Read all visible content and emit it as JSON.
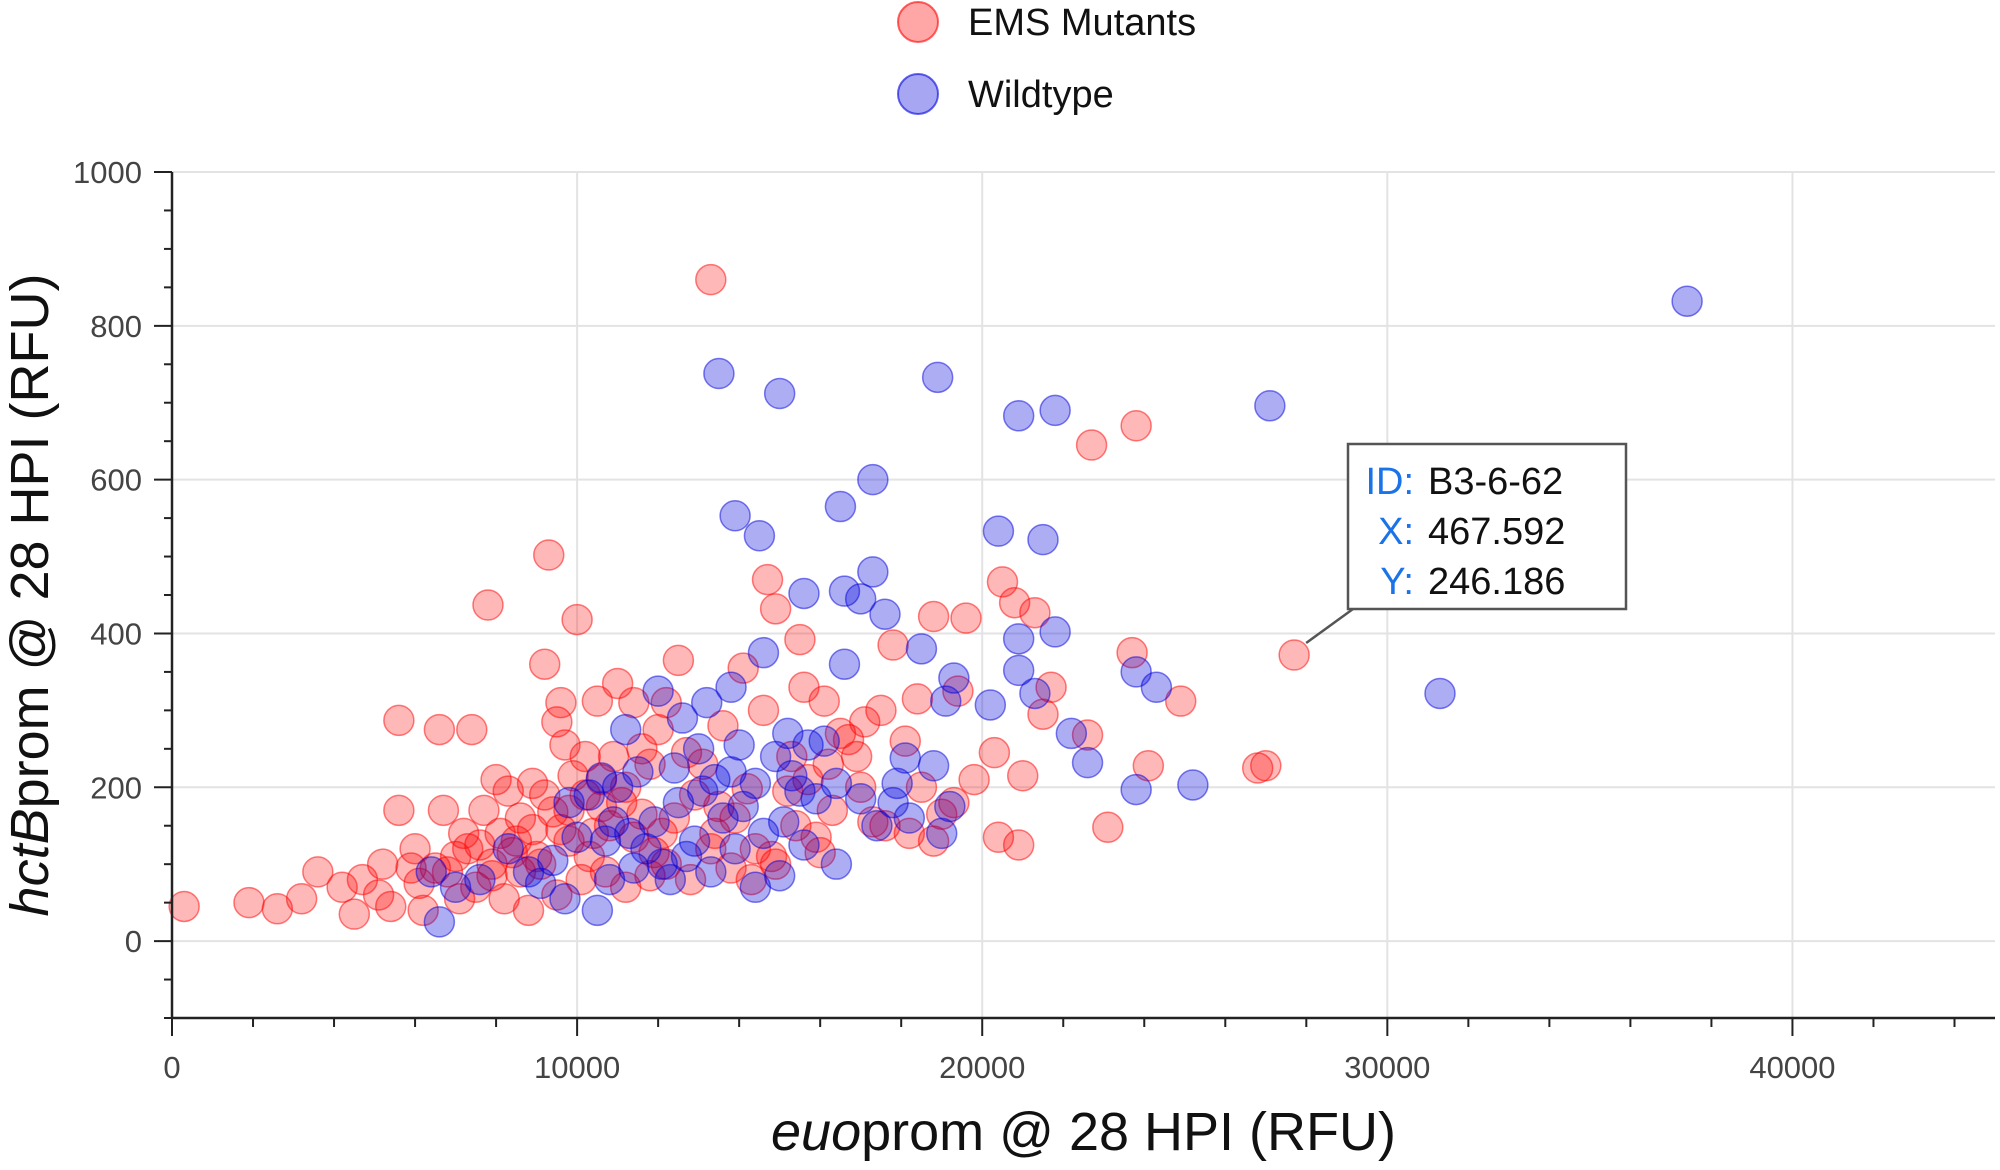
{
  "chart_data": {
    "type": "scatter",
    "title": "",
    "xlabel_italic": "euo",
    "xlabel_rest": "prom @ 28 HPI (RFU)",
    "ylabel_italic": "hctB",
    "ylabel_rest": "prom @ 28 HPI (RFU)",
    "xlim": [
      0,
      45000
    ],
    "ylim": [
      -100,
      1000
    ],
    "xticks": [
      0,
      10000,
      20000,
      30000,
      40000
    ],
    "xtick_labels": [
      "0",
      "10000",
      "20000",
      "30000",
      "40000"
    ],
    "yticks": [
      0,
      200,
      400,
      600,
      800,
      1000
    ],
    "ytick_labels": [
      "0",
      "200",
      "400",
      "600",
      "800",
      "1000"
    ],
    "grid": true,
    "legend_position": "top-center",
    "series": [
      {
        "name": "EMS Mutants",
        "color": "#ff0000",
        "points": [
          [
            13300,
            860
          ],
          [
            23800,
            670
          ],
          [
            22700,
            645
          ],
          [
            9300,
            502
          ],
          [
            7800,
            437
          ],
          [
            10000,
            418
          ],
          [
            14700,
            470
          ],
          [
            20500,
            467
          ],
          [
            14900,
            432
          ],
          [
            20800,
            440
          ],
          [
            21300,
            427
          ],
          [
            19600,
            420
          ],
          [
            18800,
            422
          ],
          [
            15500,
            392
          ],
          [
            14100,
            355
          ],
          [
            12500,
            365
          ],
          [
            9200,
            360
          ],
          [
            23700,
            375
          ],
          [
            5600,
            287
          ],
          [
            6600,
            275
          ],
          [
            7400,
            275
          ],
          [
            9600,
            310
          ],
          [
            10500,
            312
          ],
          [
            11000,
            335
          ],
          [
            9500,
            285
          ],
          [
            24100,
            228
          ],
          [
            24900,
            312
          ],
          [
            27700,
            372
          ],
          [
            27000,
            228
          ],
          [
            26800,
            225
          ],
          [
            23100,
            148
          ],
          [
            22600,
            268
          ],
          [
            21000,
            215
          ],
          [
            20400,
            135
          ],
          [
            20900,
            125
          ],
          [
            21700,
            330
          ],
          [
            21500,
            295
          ],
          [
            19400,
            325
          ],
          [
            18400,
            315
          ],
          [
            17500,
            300
          ],
          [
            16700,
            262
          ],
          [
            16100,
            312
          ],
          [
            15300,
            240
          ],
          [
            14200,
            198
          ],
          [
            13500,
            175
          ],
          [
            12700,
            245
          ],
          [
            11800,
            230
          ],
          [
            11200,
            200
          ],
          [
            10600,
            175
          ],
          [
            9900,
            215
          ],
          [
            9200,
            190
          ],
          [
            8600,
            160
          ],
          [
            8100,
            140
          ],
          [
            7600,
            125
          ],
          [
            7000,
            110
          ],
          [
            6500,
            95
          ],
          [
            6000,
            120
          ],
          [
            5600,
            170
          ],
          [
            5200,
            100
          ],
          [
            4700,
            80
          ],
          [
            4200,
            70
          ],
          [
            3600,
            90
          ],
          [
            3200,
            55
          ],
          [
            2600,
            42
          ],
          [
            1900,
            50
          ],
          [
            300,
            45
          ],
          [
            4500,
            35
          ],
          [
            5100,
            60
          ],
          [
            6200,
            40
          ],
          [
            7100,
            55
          ],
          [
            7900,
            85
          ],
          [
            8400,
            115
          ],
          [
            8900,
            145
          ],
          [
            9400,
            168
          ],
          [
            9800,
            130
          ],
          [
            10300,
            110
          ],
          [
            10800,
            150
          ],
          [
            11400,
            135
          ],
          [
            11900,
            115
          ],
          [
            12400,
            160
          ],
          [
            12900,
            190
          ],
          [
            13400,
            140
          ],
          [
            13900,
            160
          ],
          [
            14400,
            120
          ],
          [
            14900,
            100
          ],
          [
            15400,
            150
          ],
          [
            15900,
            135
          ],
          [
            16300,
            170
          ],
          [
            17000,
            200
          ],
          [
            17600,
            150
          ],
          [
            18200,
            140
          ],
          [
            18800,
            130
          ],
          [
            19300,
            180
          ],
          [
            19800,
            210
          ],
          [
            20300,
            245
          ],
          [
            17800,
            385
          ],
          [
            17100,
            285
          ],
          [
            16500,
            270
          ],
          [
            12000,
            275
          ],
          [
            11400,
            310
          ],
          [
            10200,
            240
          ],
          [
            9700,
            255
          ],
          [
            8900,
            205
          ],
          [
            8300,
            195
          ],
          [
            7700,
            170
          ],
          [
            7200,
            140
          ],
          [
            6700,
            170
          ],
          [
            6100,
            75
          ],
          [
            5400,
            45
          ],
          [
            5900,
            95
          ],
          [
            6800,
            90
          ],
          [
            7500,
            70
          ],
          [
            8200,
            55
          ],
          [
            8800,
            40
          ],
          [
            9500,
            60
          ],
          [
            10100,
            80
          ],
          [
            10700,
            90
          ],
          [
            11200,
            70
          ],
          [
            11800,
            85
          ],
          [
            12200,
            100
          ],
          [
            12800,
            80
          ],
          [
            13300,
            120
          ],
          [
            13800,
            95
          ],
          [
            14300,
            80
          ],
          [
            14800,
            110
          ],
          [
            15200,
            195
          ],
          [
            15700,
            210
          ],
          [
            16200,
            230
          ],
          [
            9100,
            100
          ],
          [
            8600,
            90
          ],
          [
            7900,
            100
          ],
          [
            7300,
            120
          ],
          [
            10400,
            140
          ],
          [
            11100,
            180
          ],
          [
            11600,
            165
          ],
          [
            12100,
            140
          ],
          [
            9800,
            170
          ],
          [
            10900,
            240
          ],
          [
            16900,
            240
          ],
          [
            18100,
            260
          ],
          [
            19000,
            165
          ],
          [
            18500,
            200
          ],
          [
            17300,
            155
          ],
          [
            16000,
            115
          ],
          [
            13100,
            230
          ],
          [
            14600,
            300
          ],
          [
            15600,
            330
          ],
          [
            12200,
            310
          ],
          [
            13600,
            280
          ],
          [
            11600,
            250
          ],
          [
            8000,
            210
          ],
          [
            8500,
            130
          ],
          [
            9000,
            110
          ],
          [
            9600,
            145
          ],
          [
            10200,
            190
          ],
          [
            10600,
            210
          ]
        ]
      },
      {
        "name": "Wildtype",
        "color": "#0000dd",
        "points": [
          [
            37400,
            832
          ],
          [
            13500,
            738
          ],
          [
            18900,
            733
          ],
          [
            15000,
            712
          ],
          [
            20900,
            683
          ],
          [
            21800,
            690
          ],
          [
            27100,
            696
          ],
          [
            17300,
            600
          ],
          [
            16500,
            565
          ],
          [
            13900,
            553
          ],
          [
            14500,
            527
          ],
          [
            20400,
            533
          ],
          [
            21500,
            522
          ],
          [
            17300,
            480
          ],
          [
            15600,
            452
          ],
          [
            16600,
            455
          ],
          [
            17000,
            445
          ],
          [
            17600,
            425
          ],
          [
            31300,
            322
          ],
          [
            20900,
            393
          ],
          [
            21800,
            402
          ],
          [
            14600,
            375
          ],
          [
            16600,
            360
          ],
          [
            18500,
            380
          ],
          [
            20900,
            352
          ],
          [
            23800,
            350
          ],
          [
            24300,
            330
          ],
          [
            21300,
            322
          ],
          [
            19300,
            342
          ],
          [
            20200,
            307
          ],
          [
            19100,
            312
          ],
          [
            13800,
            330
          ],
          [
            13200,
            310
          ],
          [
            12600,
            290
          ],
          [
            12000,
            325
          ],
          [
            11200,
            275
          ],
          [
            10600,
            212
          ],
          [
            11500,
            220
          ],
          [
            22200,
            270
          ],
          [
            22600,
            232
          ],
          [
            25200,
            203
          ],
          [
            23800,
            197
          ],
          [
            18100,
            238
          ],
          [
            18800,
            228
          ],
          [
            17900,
            205
          ],
          [
            19200,
            175
          ],
          [
            19000,
            140
          ],
          [
            18200,
            160
          ],
          [
            17000,
            185
          ],
          [
            16400,
            205
          ],
          [
            15700,
            255
          ],
          [
            15200,
            270
          ],
          [
            14900,
            240
          ],
          [
            14400,
            205
          ],
          [
            13800,
            220
          ],
          [
            13100,
            195
          ],
          [
            12500,
            180
          ],
          [
            11900,
            155
          ],
          [
            11300,
            140
          ],
          [
            10700,
            130
          ],
          [
            10000,
            135
          ],
          [
            9400,
            105
          ],
          [
            8800,
            90
          ],
          [
            8300,
            120
          ],
          [
            7600,
            80
          ],
          [
            7000,
            70
          ],
          [
            6600,
            25
          ],
          [
            10500,
            40
          ],
          [
            6400,
            90
          ],
          [
            9100,
            75
          ],
          [
            9700,
            55
          ],
          [
            10800,
            80
          ],
          [
            11400,
            95
          ],
          [
            12100,
            100
          ],
          [
            12700,
            110
          ],
          [
            13300,
            90
          ],
          [
            13900,
            120
          ],
          [
            14400,
            70
          ],
          [
            15000,
            85
          ],
          [
            15600,
            125
          ],
          [
            16400,
            100
          ],
          [
            17400,
            150
          ],
          [
            17800,
            180
          ],
          [
            15900,
            185
          ],
          [
            15100,
            155
          ],
          [
            14600,
            140
          ],
          [
            13600,
            160
          ],
          [
            12900,
            130
          ],
          [
            12300,
            80
          ],
          [
            11700,
            120
          ],
          [
            10900,
            155
          ],
          [
            10300,
            190
          ],
          [
            9800,
            180
          ],
          [
            13000,
            250
          ],
          [
            14000,
            255
          ],
          [
            15300,
            215
          ],
          [
            16100,
            260
          ],
          [
            15500,
            195
          ],
          [
            12400,
            225
          ],
          [
            11000,
            200
          ],
          [
            14100,
            175
          ],
          [
            13400,
            210
          ]
        ]
      }
    ],
    "tooltip": {
      "id_key": "ID:",
      "id_value": "B3-6-62",
      "x_key": "X:",
      "x_value": "467.592",
      "y_key": "Y:",
      "y_value": "246.186",
      "anchor": [
        27700,
        372
      ]
    }
  }
}
